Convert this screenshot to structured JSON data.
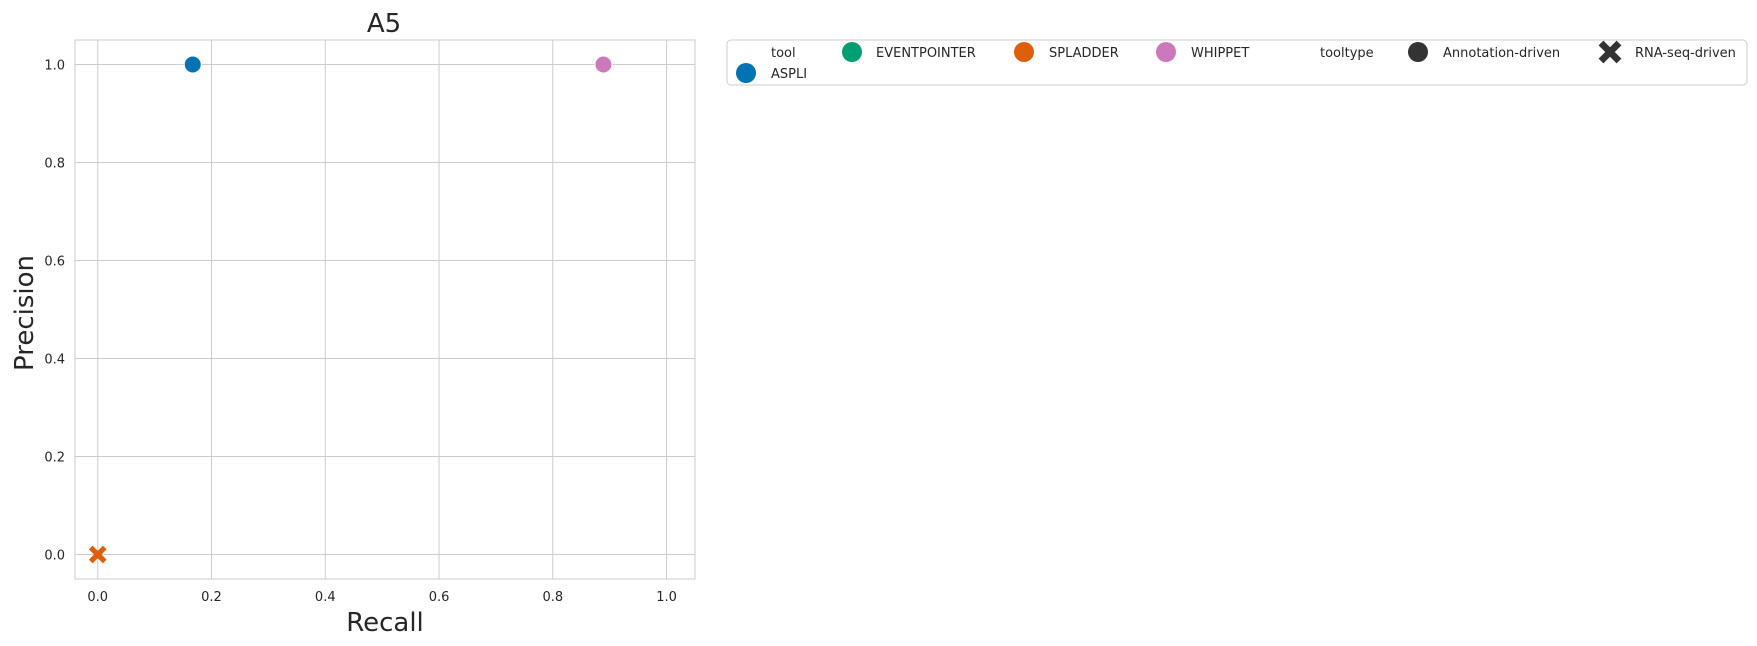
{
  "chart_data": {
    "type": "scatter",
    "title": "A5",
    "xlabel": "Recall",
    "ylabel": "Precision",
    "xlim": [
      -0.04,
      1.05
    ],
    "ylim": [
      -0.05,
      1.05
    ],
    "xticks": [
      0.0,
      0.2,
      0.4,
      0.6,
      0.8,
      1.0
    ],
    "yticks": [
      0.0,
      0.2,
      0.4,
      0.6,
      0.8,
      1.0
    ],
    "xtick_labels": [
      "0.0",
      "0.2",
      "0.4",
      "0.6",
      "0.8",
      "1.0"
    ],
    "ytick_labels": [
      "0.0",
      "0.2",
      "0.4",
      "0.6",
      "0.8",
      "1.0"
    ],
    "grid": true,
    "series": [
      {
        "name": "ASPLI",
        "tool": "ASPLI",
        "tooltype": "Annotation-driven",
        "color": "#0173b2",
        "x": 0.167,
        "y": 1.0
      },
      {
        "name": "WHIPPET",
        "tool": "WHIPPET",
        "tooltype": "Annotation-driven",
        "color": "#cc78bc",
        "x": 0.889,
        "y": 1.0
      },
      {
        "name": "SPLADDER",
        "tool": "SPLADDER",
        "tooltype": "RNA-seq-driven",
        "color": "#de5f0b",
        "x": 0.0,
        "y": 0.0
      }
    ],
    "legend": {
      "placement": "outside-top-right",
      "items": [
        {
          "label": "tool",
          "marker": "none",
          "color": ""
        },
        {
          "label": "ASPLI",
          "marker": "circle",
          "color": "#0173b2"
        },
        {
          "label": "EVENTPOINTER",
          "marker": "circle",
          "color": "#029e73"
        },
        {
          "label": "SPLADDER",
          "marker": "circle",
          "color": "#de5f0b"
        },
        {
          "label": "WHIPPET",
          "marker": "circle",
          "color": "#cc78bc"
        },
        {
          "label": "tooltype",
          "marker": "none",
          "color": ""
        },
        {
          "label": "Annotation-driven",
          "marker": "circle",
          "color": "#333333"
        },
        {
          "label": "RNA-seq-driven",
          "marker": "x",
          "color": "#333333"
        }
      ]
    }
  }
}
